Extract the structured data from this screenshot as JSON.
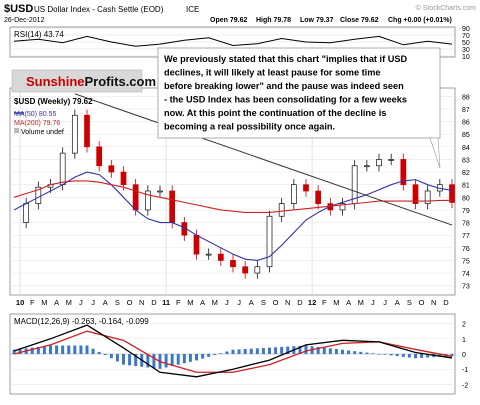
{
  "header": {
    "symbol": "$USD",
    "name": "US Dollar Index - Cash Settle (EOD)",
    "exchange": "ICE",
    "date": "26-Dec-2012",
    "open": "Open 79.62",
    "high": "High 79.78",
    "low": "Low 79.37",
    "close": "Close 79.62",
    "chg": "Chg +0.00 (+0.01%)",
    "watermark": "© StockCharts.com"
  },
  "logo": {
    "text_a": "Sunshine",
    "text_b": "Profits",
    "text_c": ".com"
  },
  "annotation": {
    "lines": [
      "We previously stated that this chart \"implies that if USD",
      "declines, it will likely at least pause for some time",
      "before breaking lower\" and the pause was indeed seen",
      "- the USD Index has been consolidating for a few weeks",
      "now. At this point the continuation of the decline is",
      "becoming a real possibility once again."
    ]
  },
  "colors": {
    "up": "#111111",
    "down": "#cc0000",
    "ma50": "#3333aa",
    "ma200": "#cc2222",
    "rsi": "#000000",
    "trend": "#333333",
    "macd": "#000000",
    "signal": "#cc2222",
    "hist": "#3a78c9",
    "logo_bg": "#d8d8d8",
    "logo_red": "#cc0000"
  },
  "chart_data": [
    {
      "type": "line",
      "title": "RSI(14) 43.74",
      "ylim": [
        10,
        90
      ],
      "y_ticks": [
        10,
        30,
        50,
        70,
        90
      ],
      "y_tick_labels": [
        "10",
        "30",
        "50",
        "70",
        "90"
      ],
      "series": [
        {
          "name": "RSI(14)",
          "x": [
            0,
            2,
            4,
            6,
            8,
            10,
            12,
            14,
            16,
            18,
            20,
            22,
            24,
            26,
            28,
            30,
            32,
            34,
            36
          ],
          "values": [
            52,
            58,
            48,
            66,
            50,
            38,
            44,
            55,
            62,
            40,
            45,
            60,
            50,
            48,
            58,
            66,
            42,
            52,
            44
          ]
        }
      ]
    },
    {
      "type": "candlestick",
      "title": "$USD (Weekly) 79.62",
      "ylim": [
        72.5,
        88.5
      ],
      "y_ticks": [
        73,
        74,
        75,
        76,
        77,
        78,
        79,
        80,
        81,
        82,
        83,
        84,
        85,
        86,
        87,
        88
      ],
      "x_tick_labels": [
        "10",
        "F",
        "M",
        "A",
        "M",
        "J",
        "J",
        "A",
        "S",
        "O",
        "N",
        "D",
        "11",
        "F",
        "M",
        "A",
        "M",
        "J",
        "J",
        "A",
        "S",
        "O",
        "N",
        "D",
        "12",
        "F",
        "M",
        "A",
        "M",
        "J",
        "J",
        "A",
        "S",
        "O",
        "N",
        "D"
      ],
      "x": [
        0,
        1,
        2,
        3,
        4,
        5,
        6,
        7,
        8,
        9,
        10,
        11,
        12,
        13,
        14,
        15,
        16,
        17,
        18,
        19,
        20,
        21,
        22,
        23,
        24,
        25,
        26,
        27,
        28,
        29,
        30,
        31,
        32,
        33,
        34,
        35,
        36
      ],
      "values": [
        78.0,
        79.5,
        80.8,
        81.0,
        83.5,
        86.5,
        84.0,
        82.5,
        82.0,
        81.0,
        79.0,
        80.5,
        80.5,
        78.0,
        77.0,
        75.5,
        75.5,
        75.0,
        74.5,
        74.0,
        74.5,
        78.5,
        79.5,
        81.0,
        80.5,
        79.5,
        79.0,
        79.5,
        82.5,
        82.5,
        83.0,
        83.0,
        81.0,
        79.5,
        80.5,
        81.0,
        79.6
      ],
      "series": [
        {
          "name": "MA(50) 80.55",
          "values": [
            79.0,
            79.5,
            80.0,
            80.5,
            81.0,
            81.6,
            82.0,
            81.8,
            81.0,
            80.0,
            79.0,
            78.3,
            78.0,
            78.0,
            77.6,
            77.0,
            76.5,
            76.0,
            75.5,
            75.1,
            75.0,
            75.3,
            76.2,
            77.2,
            78.2,
            78.8,
            79.3,
            79.6,
            79.9,
            80.2,
            80.6,
            81.0,
            81.3,
            81.4,
            81.0,
            80.7,
            80.55
          ]
        },
        {
          "name": "MA(200) 79.76",
          "values": [
            80.0,
            80.3,
            80.6,
            81.0,
            81.2,
            81.3,
            81.3,
            81.2,
            81.0,
            80.8,
            80.5,
            80.2,
            80.0,
            79.8,
            79.6,
            79.4,
            79.2,
            79.0,
            78.9,
            78.8,
            78.8,
            78.8,
            78.9,
            79.0,
            79.1,
            79.2,
            79.3,
            79.4,
            79.5,
            79.6,
            79.7,
            79.7,
            79.7,
            79.7,
            79.7,
            79.75,
            79.76
          ]
        },
        {
          "name": "Trendline",
          "x": [
            5,
            36
          ],
          "values": [
            88.2,
            77.8
          ]
        }
      ],
      "legend": [
        "$USD (Weekly) 79.62",
        "MA(50) 80.55",
        "MA(200) 79.76",
        "Volume undef"
      ]
    },
    {
      "type": "line",
      "title": "MACD(12,26,9) -0.263, -0.164, -0.099",
      "ylim": [
        -2.5,
        2.5
      ],
      "y_ticks": [
        -2,
        -1,
        0,
        1,
        2
      ],
      "y_tick_labels": [
        "-2",
        "-1",
        "0",
        "1",
        "2"
      ],
      "series": [
        {
          "name": "MACD(12,26,9)",
          "x": [
            0,
            3,
            6,
            9,
            12,
            15,
            18,
            21,
            24,
            27,
            30,
            33,
            36
          ],
          "values": [
            0.2,
            1.0,
            1.9,
            0.4,
            -1.2,
            -1.5,
            -1.0,
            -0.4,
            0.6,
            0.9,
            0.8,
            0.1,
            -0.26
          ]
        },
        {
          "name": "Signal",
          "x": [
            0,
            3,
            6,
            9,
            12,
            15,
            18,
            21,
            24,
            27,
            30,
            33,
            36
          ],
          "values": [
            0.0,
            0.6,
            1.5,
            0.9,
            -0.5,
            -1.2,
            -1.2,
            -0.7,
            0.2,
            0.7,
            0.8,
            0.3,
            -0.16
          ]
        }
      ]
    }
  ]
}
